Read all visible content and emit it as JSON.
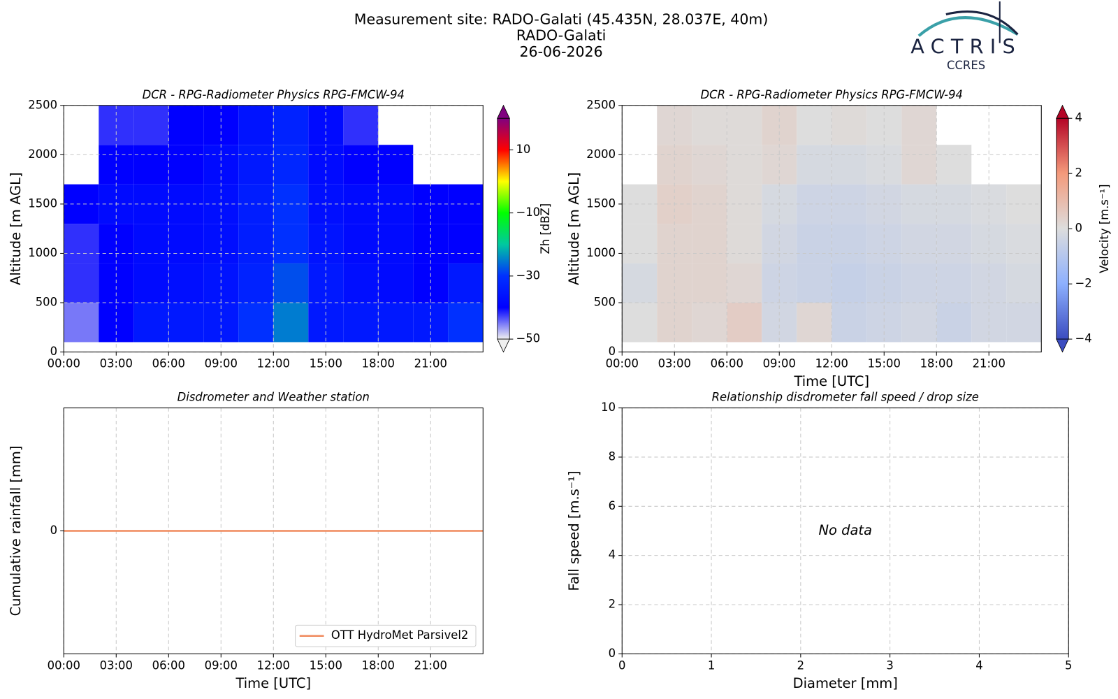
{
  "header": {
    "title": [
      "Measurement site: RADO-Galati (45.435N, 28.037E, 40m)",
      "RADO-Galati",
      "26-06-2026"
    ],
    "logo": "ACTRIS",
    "logo_sub": "CCRES"
  },
  "chart_data": [
    {
      "type": "heatmap",
      "title": "DCR - RPG-Radiometer Physics RPG-FMCW-94",
      "ylabel": "Altitude [m AGL]",
      "xlim": [
        0,
        24
      ],
      "xticks": [
        {
          "value": 0,
          "label": "00:00"
        },
        {
          "value": 3,
          "label": "03:00"
        },
        {
          "value": 6,
          "label": "06:00"
        },
        {
          "value": 9,
          "label": "09:00"
        },
        {
          "value": 12,
          "label": "12:00"
        },
        {
          "value": 15,
          "label": "15:00"
        },
        {
          "value": 18,
          "label": "18:00"
        },
        {
          "value": 21,
          "label": "21:00"
        }
      ],
      "ylim": [
        0,
        2500
      ],
      "yticks": [
        0,
        500,
        1000,
        1500,
        2000,
        2500
      ],
      "grid": true,
      "x_edges": [
        0,
        2,
        4,
        6,
        8,
        10,
        12,
        14,
        16,
        18,
        20,
        22,
        24
      ],
      "y_edges": [
        100,
        500,
        900,
        1300,
        1700,
        2100,
        2500
      ],
      "z": [
        [
          -45,
          -40,
          -35,
          -35,
          -35,
          -30,
          -25,
          -35,
          -35,
          -35,
          -35,
          -30
        ],
        [
          -42,
          -40,
          -38,
          -37,
          -36,
          -33,
          -28,
          -35,
          -37,
          -38,
          -40,
          -35
        ],
        [
          -42,
          -40,
          -38,
          -38,
          -37,
          -34,
          -30,
          -36,
          -38,
          -38,
          -40,
          -40
        ],
        [
          -40,
          -38,
          -38,
          -38,
          -37,
          -34,
          -30,
          -37,
          -38,
          -38,
          -40,
          -40
        ],
        [
          null,
          -40,
          -40,
          -40,
          -38,
          -35,
          -32,
          -38,
          -40,
          -40,
          null,
          null
        ],
        [
          null,
          -42,
          -42,
          -40,
          -40,
          -36,
          -33,
          -38,
          -42,
          null,
          null,
          null
        ]
      ],
      "colorbar_label": "Zh [dBZ]",
      "clim": [
        -50,
        20
      ],
      "cticks": [
        {
          "value": -50,
          "label": "−50"
        },
        {
          "value": -30,
          "label": "−30"
        },
        {
          "value": -10,
          "label": "−10"
        },
        10
      ],
      "colormap": [
        "#f0f0f0",
        "#0000ff",
        "#0030ff",
        "#00c8a0",
        "#00ff00",
        "#ffff00",
        "#ff0000",
        "#800080"
      ]
    },
    {
      "type": "heatmap",
      "title": "DCR - RPG-Radiometer Physics RPG-FMCW-94",
      "ylabel": "Altitude [m AGL]",
      "xlabel": "Time [UTC]",
      "xlim": [
        0,
        24
      ],
      "xticks": [
        {
          "value": 0,
          "label": "00:00"
        },
        {
          "value": 3,
          "label": "03:00"
        },
        {
          "value": 6,
          "label": "06:00"
        },
        {
          "value": 9,
          "label": "09:00"
        },
        {
          "value": 12,
          "label": "12:00"
        },
        {
          "value": 15,
          "label": "15:00"
        },
        {
          "value": 18,
          "label": "18:00"
        },
        {
          "value": 21,
          "label": "21:00"
        }
      ],
      "ylim": [
        0,
        2500
      ],
      "yticks": [
        0,
        500,
        1000,
        1500,
        2000,
        2500
      ],
      "grid": true,
      "x_edges": [
        0,
        2,
        4,
        6,
        8,
        10,
        12,
        14,
        16,
        18,
        20,
        22,
        24
      ],
      "y_edges": [
        100,
        500,
        900,
        1300,
        1700,
        2100,
        2500
      ],
      "z": [
        [
          0,
          0.3,
          0.2,
          0.5,
          -0.3,
          0.2,
          -0.5,
          -0.4,
          -0.3,
          -0.5,
          -0.3,
          -0.3
        ],
        [
          -0.2,
          0.3,
          0.3,
          0.2,
          -0.4,
          -0.5,
          -0.6,
          -0.5,
          -0.4,
          -0.4,
          -0.3,
          -0.2
        ],
        [
          0,
          0.3,
          0.3,
          0.1,
          -0.3,
          -0.5,
          -0.5,
          -0.4,
          -0.3,
          -0.3,
          -0.2,
          -0.1
        ],
        [
          0,
          0.4,
          0.3,
          0.1,
          -0.2,
          -0.4,
          -0.4,
          -0.3,
          -0.2,
          -0.2,
          -0.1,
          0
        ],
        [
          null,
          0.3,
          0.2,
          0.1,
          0.2,
          -0.2,
          -0.2,
          -0.1,
          0.2,
          0,
          null,
          null
        ],
        [
          null,
          0.2,
          0.1,
          0.1,
          0.3,
          0,
          0.1,
          0,
          0.2,
          null,
          null,
          null
        ]
      ],
      "colorbar_label": "Velocity [m.s⁻¹]",
      "clim": [
        -4,
        4
      ],
      "cticks": [
        {
          "value": -4,
          "label": "−4"
        },
        {
          "value": -2,
          "label": "−2"
        },
        0,
        2,
        4
      ],
      "colormap": [
        "#3b4cc0",
        "#8db0fe",
        "#dddddd",
        "#f49a7b",
        "#b40426"
      ]
    },
    {
      "type": "line",
      "title": "Disdrometer and Weather station",
      "ylabel": "Cumulative rainfall [mm]",
      "xlabel": "Time [UTC]",
      "xlim": [
        0,
        24
      ],
      "xticks": [
        {
          "value": 0,
          "label": "00:00"
        },
        {
          "value": 3,
          "label": "03:00"
        },
        {
          "value": 6,
          "label": "06:00"
        },
        {
          "value": 9,
          "label": "09:00"
        },
        {
          "value": 12,
          "label": "12:00"
        },
        {
          "value": 15,
          "label": "15:00"
        },
        {
          "value": 18,
          "label": "18:00"
        },
        {
          "value": 21,
          "label": "21:00"
        }
      ],
      "ylim": [
        -1,
        1
      ],
      "yticks": [
        0
      ],
      "grid": true,
      "legend": "lower right",
      "x": [
        0,
        24
      ],
      "series": [
        {
          "name": "OTT HydroMet Parsivel2",
          "color": "#f08a5d",
          "values": [
            0,
            0
          ]
        }
      ]
    },
    {
      "type": "scatter",
      "title": "Relationship disdrometer fall speed / drop size",
      "ylabel": "Fall speed [m.s⁻¹]",
      "xlabel": "Diameter [mm]",
      "xlim": [
        0,
        5
      ],
      "xticks": [
        0,
        1,
        2,
        3,
        4,
        5
      ],
      "ylim": [
        0,
        10
      ],
      "yticks": [
        0,
        2,
        4,
        6,
        8,
        10
      ],
      "grid": true,
      "annotation": "No data"
    }
  ]
}
